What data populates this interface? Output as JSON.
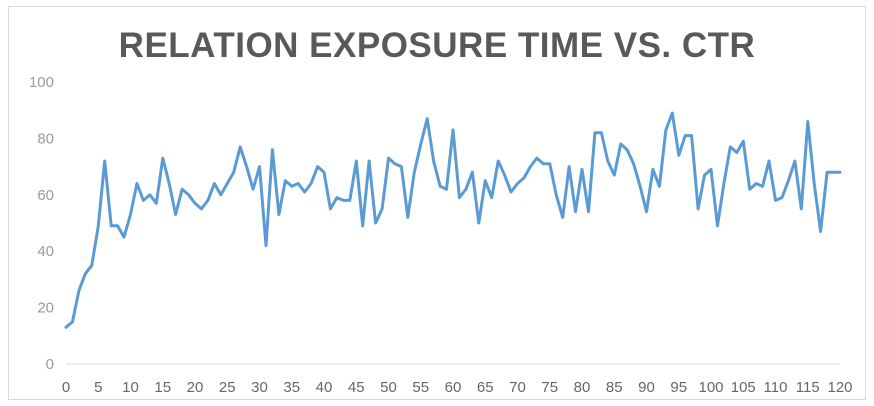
{
  "chart_data": {
    "type": "line",
    "title": "RELATION EXPOSURE TIME VS. CTR",
    "xlabel": "",
    "ylabel": "",
    "xlim": [
      0,
      120
    ],
    "ylim": [
      0,
      100
    ],
    "x_ticks": [
      0,
      5,
      10,
      15,
      20,
      25,
      30,
      35,
      40,
      45,
      50,
      55,
      60,
      65,
      70,
      75,
      80,
      85,
      90,
      95,
      100,
      105,
      110,
      115,
      120
    ],
    "y_ticks": [
      0,
      20,
      40,
      60,
      80,
      100
    ],
    "grid": false,
    "legend": "none",
    "series": [
      {
        "color": "#5b9bd5",
        "x": [
          0,
          1,
          2,
          3,
          4,
          5,
          6,
          7,
          8,
          9,
          10,
          11,
          12,
          13,
          14,
          15,
          16,
          17,
          18,
          19,
          20,
          21,
          22,
          23,
          24,
          25,
          26,
          27,
          28,
          29,
          30,
          31,
          32,
          33,
          34,
          35,
          36,
          37,
          38,
          39,
          40,
          41,
          42,
          43,
          44,
          45,
          46,
          47,
          48,
          49,
          50,
          51,
          52,
          53,
          54,
          55,
          56,
          57,
          58,
          59,
          60,
          61,
          62,
          63,
          64,
          65,
          66,
          67,
          68,
          69,
          70,
          71,
          72,
          73,
          74,
          75,
          76,
          77,
          78,
          79,
          80,
          81,
          82,
          83,
          84,
          85,
          86,
          87,
          88,
          89,
          90,
          91,
          92,
          93,
          94,
          95,
          96,
          97,
          98,
          99,
          100,
          101,
          102,
          103,
          104,
          105,
          106,
          107,
          108,
          109,
          110,
          111,
          112,
          113,
          114,
          115,
          116,
          117,
          118,
          119,
          120
        ],
        "values": [
          13,
          15,
          26,
          32,
          35,
          49,
          72,
          49,
          49,
          45,
          53,
          64,
          58,
          60,
          57,
          73,
          64,
          53,
          62,
          60,
          57,
          55,
          58,
          64,
          60,
          64,
          68,
          77,
          70,
          62,
          70,
          42,
          76,
          53,
          65,
          63,
          64,
          61,
          64,
          70,
          68,
          55,
          59,
          58,
          58,
          72,
          49,
          72,
          50,
          55,
          73,
          71,
          70,
          52,
          68,
          78,
          87,
          72,
          63,
          62,
          83,
          59,
          62,
          68,
          50,
          65,
          59,
          72,
          67,
          61,
          64,
          66,
          70,
          73,
          71,
          71,
          60,
          52,
          70,
          54,
          69,
          54,
          82,
          82,
          72,
          67,
          78,
          76,
          71,
          63,
          54,
          69,
          63,
          83,
          89,
          74,
          81,
          81,
          55,
          67,
          69,
          49,
          64,
          77,
          75,
          79,
          62,
          64,
          63,
          72,
          58,
          59,
          65,
          72,
          55,
          86,
          64,
          47,
          68,
          68,
          68
        ]
      }
    ]
  }
}
